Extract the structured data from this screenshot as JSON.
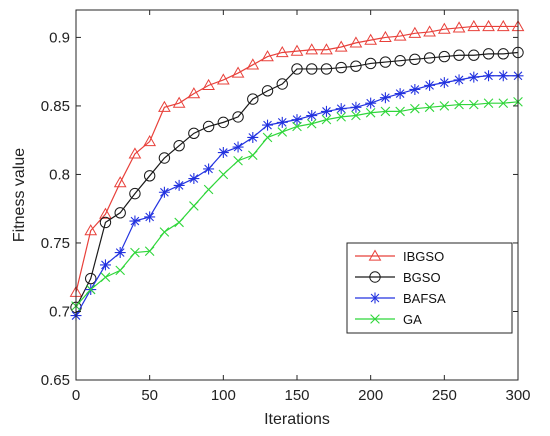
{
  "chart_data": {
    "type": "line",
    "title": "",
    "xlabel": "Iterations",
    "ylabel": "Fitness value",
    "xlim": [
      0,
      300
    ],
    "ylim": [
      0.65,
      0.92
    ],
    "xticks": [
      0,
      50,
      100,
      150,
      200,
      250,
      300
    ],
    "yticks": [
      0.65,
      0.7,
      0.75,
      0.8,
      0.85,
      0.9
    ],
    "ytick_labels": [
      "0.65",
      "0.7",
      "0.75",
      "0.8",
      "0.85",
      "0.9"
    ],
    "grid": false,
    "legend_position": "bottom-right",
    "x": [
      0,
      10,
      20,
      30,
      40,
      50,
      60,
      70,
      80,
      90,
      100,
      110,
      120,
      130,
      140,
      150,
      160,
      170,
      180,
      190,
      200,
      210,
      220,
      230,
      240,
      250,
      260,
      270,
      280,
      290,
      300
    ],
    "series": [
      {
        "name": "IBGSO",
        "color": "#e8403a",
        "marker": "triangle",
        "values": [
          0.714,
          0.759,
          0.771,
          0.794,
          0.815,
          0.824,
          0.849,
          0.852,
          0.859,
          0.865,
          0.869,
          0.874,
          0.88,
          0.886,
          0.889,
          0.89,
          0.891,
          0.891,
          0.893,
          0.896,
          0.898,
          0.9,
          0.901,
          0.903,
          0.904,
          0.906,
          0.907,
          0.908,
          0.908,
          0.908,
          0.908
        ]
      },
      {
        "name": "BGSO",
        "color": "#1a1a1a",
        "marker": "circle",
        "values": [
          0.703,
          0.724,
          0.765,
          0.772,
          0.786,
          0.799,
          0.812,
          0.821,
          0.83,
          0.835,
          0.838,
          0.842,
          0.855,
          0.861,
          0.866,
          0.877,
          0.877,
          0.877,
          0.878,
          0.879,
          0.881,
          0.882,
          0.883,
          0.884,
          0.885,
          0.886,
          0.887,
          0.887,
          0.888,
          0.888,
          0.889
        ]
      },
      {
        "name": "BAFSA",
        "color": "#2333e0",
        "marker": "star",
        "values": [
          0.697,
          0.716,
          0.734,
          0.743,
          0.766,
          0.769,
          0.787,
          0.792,
          0.797,
          0.804,
          0.816,
          0.82,
          0.827,
          0.836,
          0.838,
          0.84,
          0.843,
          0.846,
          0.848,
          0.849,
          0.852,
          0.856,
          0.859,
          0.862,
          0.865,
          0.867,
          0.869,
          0.871,
          0.872,
          0.872,
          0.872
        ]
      },
      {
        "name": "GA",
        "color": "#2fd63a",
        "marker": "x",
        "values": [
          0.704,
          0.716,
          0.725,
          0.73,
          0.743,
          0.744,
          0.758,
          0.765,
          0.777,
          0.789,
          0.8,
          0.81,
          0.814,
          0.827,
          0.831,
          0.835,
          0.837,
          0.84,
          0.842,
          0.843,
          0.845,
          0.846,
          0.846,
          0.848,
          0.849,
          0.85,
          0.851,
          0.851,
          0.852,
          0.852,
          0.853
        ]
      }
    ]
  }
}
